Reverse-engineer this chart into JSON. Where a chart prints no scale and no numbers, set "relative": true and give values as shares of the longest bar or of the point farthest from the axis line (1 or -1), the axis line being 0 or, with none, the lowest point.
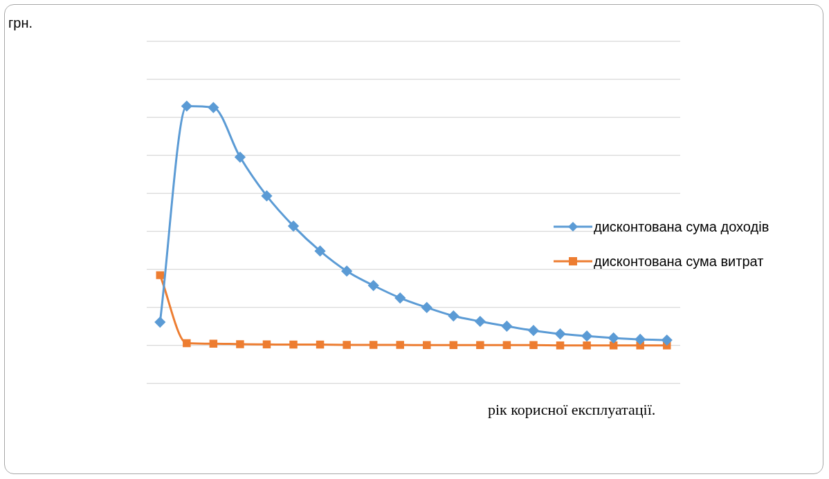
{
  "chart_data": {
    "type": "line",
    "relative": true,
    "annotations": [
      "грн."
    ],
    "xlabel": "рік корисної експлуатації.",
    "grid": "y",
    "legend": "right",
    "categories": [
      null,
      null,
      null,
      null,
      null,
      null,
      null,
      null,
      null,
      null,
      null,
      null,
      null,
      null,
      null,
      null,
      null,
      null,
      null,
      null
    ],
    "series": [
      {
        "name": "дисконтована сума доходів",
        "color": "#5b9bd5",
        "marker": "diamond",
        "values": [
          0.098,
          1,
          0.994,
          0.787,
          0.625,
          0.499,
          0.395,
          0.311,
          0.251,
          0.199,
          0.159,
          0.124,
          0.101,
          0.081,
          0.063,
          0.049,
          0.04,
          0.032,
          0.026,
          0.023
        ]
      },
      {
        "name": "дисконтована сума витрат",
        "color": "#ed7d31",
        "marker": "square",
        "values": [
          0.294,
          0.01,
          0.008,
          0.006,
          0.005,
          0.004,
          0.004,
          0.003,
          0.003,
          0.003,
          0.002,
          0.002,
          0.002,
          0.002,
          0.002,
          0.001,
          0.001,
          0.001,
          0.001,
          0.001
        ]
      }
    ]
  }
}
